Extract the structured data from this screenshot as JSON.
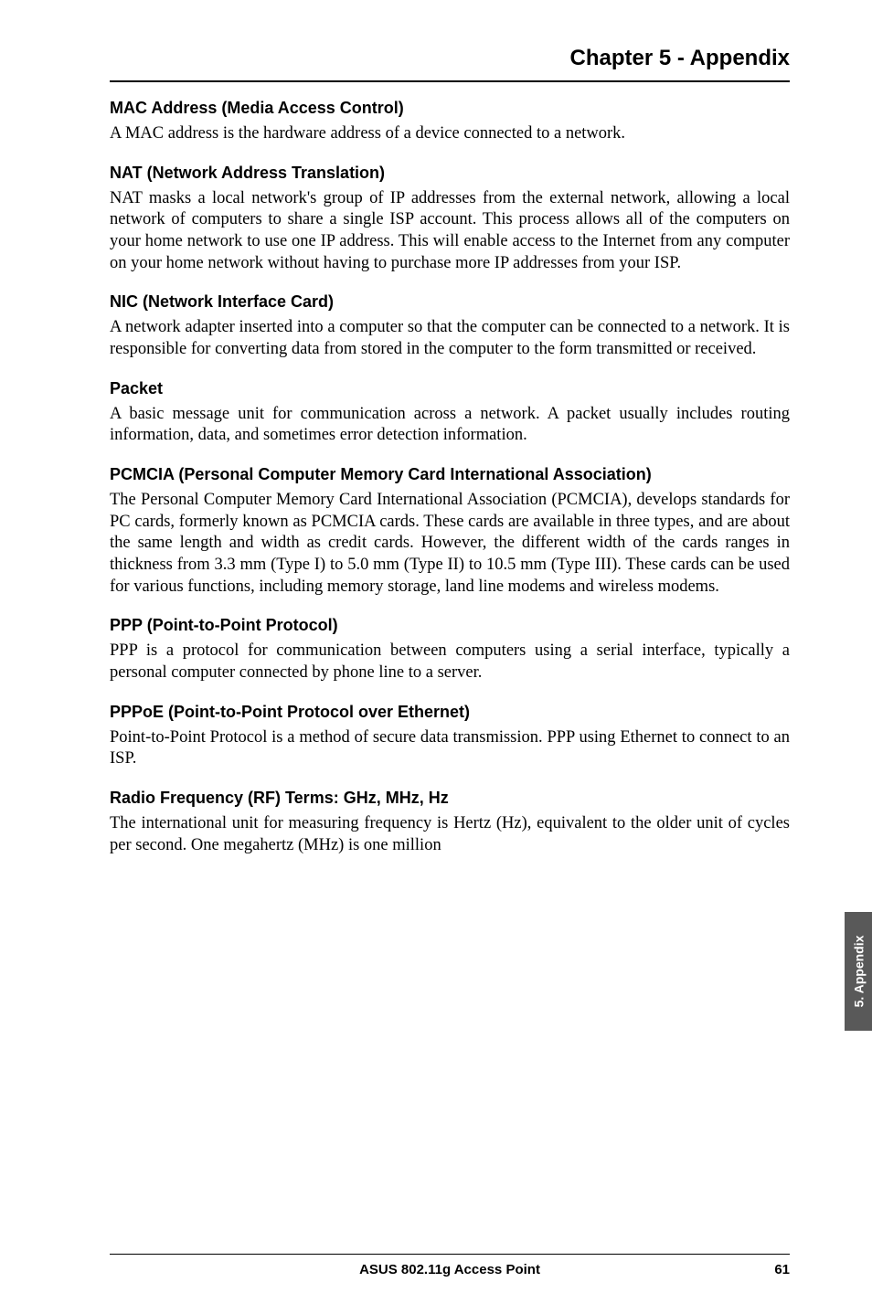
{
  "chapter_title": "Chapter 5 - Appendix",
  "sections": [
    {
      "heading": "MAC Address (Media Access Control)",
      "body": "A MAC address is the hardware address of a device connected to a network."
    },
    {
      "heading": "NAT (Network Address Translation)",
      "body": "NAT masks a local network's group of IP addresses from the external network, allowing a local network of computers to share a single ISP account. This process allows all of the computers on your home network to use one IP address. This will enable access to the Internet from any computer on your home network without having to purchase more IP addresses from your ISP."
    },
    {
      "heading": "NIC (Network Interface Card)",
      "body": "A network adapter inserted into a computer so that the computer can be connected to a network. It is responsible for converting data from stored in the computer to the form transmitted or received."
    },
    {
      "heading": "Packet",
      "body": "A basic message unit for communication across a network. A packet usually includes routing information, data, and sometimes error detection information."
    },
    {
      "heading": "PCMCIA (Personal Computer Memory Card International Association)",
      "body": "The Personal Computer Memory Card International Association (PCMCIA), develops standards for PC cards, formerly known as PCMCIA cards. These cards are available in three types, and are about the same length and width as credit cards. However, the different width of the cards ranges in thickness from 3.3 mm (Type I) to 5.0 mm (Type II) to 10.5 mm (Type III). These cards can be used for various functions, including memory storage, land line modems and wireless modems."
    },
    {
      "heading": "PPP (Point-to-Point Protocol)",
      "body": "PPP is a protocol for communication between computers using a serial interface, typically a personal computer connected by phone line to a server."
    },
    {
      "heading": "PPPoE (Point-to-Point Protocol over Ethernet)",
      "body": "Point-to-Point Protocol is a method of secure data transmission. PPP using Ethernet to connect to an ISP."
    },
    {
      "heading": "Radio Frequency (RF) Terms: GHz, MHz, Hz",
      "body": "The international unit for measuring frequency is Hertz (Hz), equivalent to the older unit of cycles per second. One megahertz (MHz) is one million"
    }
  ],
  "footer_text": "ASUS 802.11g Access Point",
  "page_number": "61",
  "side_tab": "5. Appendix",
  "colors": {
    "text": "#000000",
    "background": "#ffffff",
    "tab_bg": "#595959",
    "tab_text": "#ffffff"
  }
}
